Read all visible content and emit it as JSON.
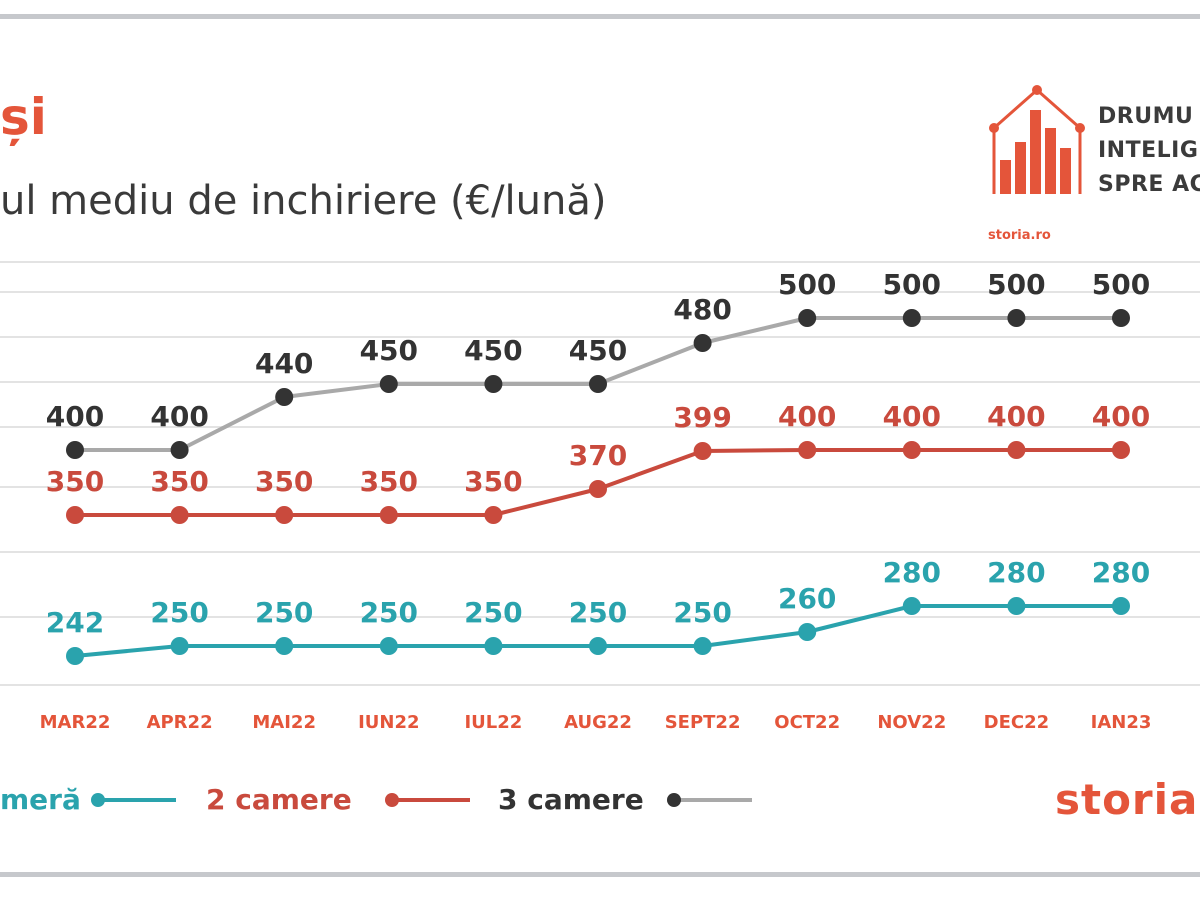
{
  "header": {
    "title": "și",
    "subtitle": "ul mediu de inchiriere (€/lună)",
    "brand_lines": [
      "DRUMU",
      "INTELIG",
      "SPRE AC"
    ],
    "logo_caption": "storia.ro"
  },
  "footer": {
    "logo_text": "storia"
  },
  "colors": {
    "accent": "#e4553a",
    "teal": "#2aa3ad",
    "red": "#c94a3d",
    "black": "#333333",
    "gray_line": "#a9a9a9",
    "grid": "#e3e3e3",
    "frame": "#c6c8cc"
  },
  "icons": {
    "logo": "house-bar-chart-icon"
  },
  "chart_data": {
    "type": "line",
    "title": "",
    "ylabel": "",
    "xlabel": "",
    "categories": [
      "MAR22",
      "APR22",
      "MAI22",
      "IUN22",
      "IUL22",
      "AUG22",
      "SEPT22",
      "OCT22",
      "NOV22",
      "DEC22",
      "IAN23"
    ],
    "series": [
      {
        "name": "meră",
        "color": "#2aa3ad",
        "line_color": "#2aa3ad",
        "values": [
          242,
          250,
          250,
          250,
          250,
          250,
          250,
          260,
          280,
          280,
          280
        ]
      },
      {
        "name": "2 camere",
        "color": "#c94a3d",
        "line_color": "#c94a3d",
        "values": [
          350,
          350,
          350,
          350,
          350,
          370,
          399,
          400,
          400,
          400,
          400
        ]
      },
      {
        "name": "3 camere",
        "color": "#333333",
        "line_color": "#a9a9a9",
        "values": [
          400,
          400,
          440,
          450,
          450,
          450,
          480,
          500,
          500,
          500,
          500
        ]
      }
    ],
    "grid": true,
    "legend_position": "bottom-left",
    "data_labels": true
  }
}
